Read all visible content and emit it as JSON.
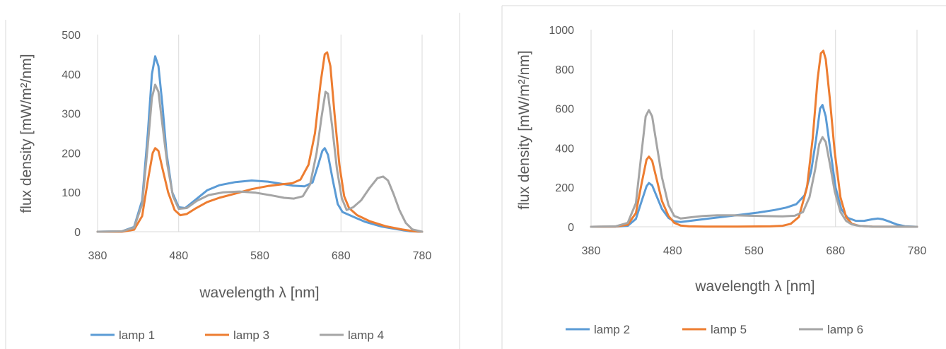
{
  "chart_data": [
    {
      "type": "line",
      "title": "",
      "xlabel": "wavelength λ [nm]",
      "ylabel": "flux density [mW/m²/nm]",
      "xlim": [
        380,
        780
      ],
      "ylim": [
        0,
        500
      ],
      "x_ticks": [
        380,
        480,
        580,
        680,
        780
      ],
      "y_ticks": [
        0,
        100,
        200,
        300,
        400,
        500
      ],
      "grid": "vertical",
      "legend_position": "bottom",
      "series": [
        {
          "name": "lamp 1",
          "color": "#5b9bd5",
          "points": [
            [
              380,
              0
            ],
            [
              410,
              1
            ],
            [
              425,
              12
            ],
            [
              435,
              80
            ],
            [
              442,
              250
            ],
            [
              447,
              400
            ],
            [
              451,
              445
            ],
            [
              455,
              420
            ],
            [
              460,
              320
            ],
            [
              465,
              200
            ],
            [
              472,
              100
            ],
            [
              480,
              62
            ],
            [
              488,
              60
            ],
            [
              500,
              80
            ],
            [
              515,
              105
            ],
            [
              530,
              118
            ],
            [
              550,
              126
            ],
            [
              570,
              130
            ],
            [
              590,
              127
            ],
            [
              605,
              122
            ],
            [
              620,
              117
            ],
            [
              635,
              115
            ],
            [
              645,
              125
            ],
            [
              652,
              170
            ],
            [
              657,
              205
            ],
            [
              660,
              212
            ],
            [
              664,
              195
            ],
            [
              670,
              130
            ],
            [
              676,
              70
            ],
            [
              682,
              50
            ],
            [
              695,
              38
            ],
            [
              710,
              25
            ],
            [
              730,
              13
            ],
            [
              750,
              6
            ],
            [
              765,
              1
            ],
            [
              780,
              0
            ]
          ]
        },
        {
          "name": "lamp 3",
          "color": "#ed7d31",
          "points": [
            [
              380,
              0
            ],
            [
              410,
              0
            ],
            [
              425,
              5
            ],
            [
              435,
              40
            ],
            [
              442,
              130
            ],
            [
              448,
              200
            ],
            [
              451,
              212
            ],
            [
              455,
              205
            ],
            [
              460,
              160
            ],
            [
              467,
              100
            ],
            [
              475,
              55
            ],
            [
              482,
              42
            ],
            [
              490,
              45
            ],
            [
              500,
              58
            ],
            [
              515,
              75
            ],
            [
              530,
              86
            ],
            [
              550,
              97
            ],
            [
              570,
              108
            ],
            [
              590,
              116
            ],
            [
              610,
              121
            ],
            [
              620,
              123
            ],
            [
              630,
              132
            ],
            [
              640,
              170
            ],
            [
              648,
              250
            ],
            [
              655,
              380
            ],
            [
              660,
              450
            ],
            [
              663,
              455
            ],
            [
              667,
              420
            ],
            [
              672,
              300
            ],
            [
              678,
              170
            ],
            [
              684,
              90
            ],
            [
              690,
              60
            ],
            [
              700,
              42
            ],
            [
              715,
              27
            ],
            [
              735,
              14
            ],
            [
              755,
              6
            ],
            [
              770,
              1
            ],
            [
              780,
              0
            ]
          ]
        },
        {
          "name": "lamp 4",
          "color": "#a5a5a5",
          "points": [
            [
              380,
              0
            ],
            [
              410,
              1
            ],
            [
              425,
              10
            ],
            [
              435,
              70
            ],
            [
              442,
              220
            ],
            [
              447,
              340
            ],
            [
              451,
              373
            ],
            [
              455,
              355
            ],
            [
              460,
              270
            ],
            [
              466,
              170
            ],
            [
              473,
              90
            ],
            [
              480,
              58
            ],
            [
              490,
              60
            ],
            [
              502,
              78
            ],
            [
              517,
              93
            ],
            [
              535,
              100
            ],
            [
              555,
              102
            ],
            [
              575,
              99
            ],
            [
              595,
              92
            ],
            [
              610,
              86
            ],
            [
              622,
              84
            ],
            [
              633,
              90
            ],
            [
              642,
              120
            ],
            [
              650,
              200
            ],
            [
              656,
              290
            ],
            [
              661,
              355
            ],
            [
              664,
              350
            ],
            [
              669,
              270
            ],
            [
              675,
              160
            ],
            [
              681,
              85
            ],
            [
              687,
              55
            ],
            [
              695,
              62
            ],
            [
              705,
              80
            ],
            [
              715,
              110
            ],
            [
              725,
              136
            ],
            [
              732,
              140
            ],
            [
              738,
              130
            ],
            [
              745,
              95
            ],
            [
              752,
              55
            ],
            [
              760,
              22
            ],
            [
              768,
              6
            ],
            [
              780,
              0
            ]
          ]
        }
      ]
    },
    {
      "type": "line",
      "title": "",
      "xlabel": "wavelength λ [nm]",
      "ylabel": "flux density [mW/m²/nm]",
      "xlim": [
        380,
        780
      ],
      "ylim": [
        0,
        1000
      ],
      "x_ticks": [
        380,
        480,
        580,
        680,
        780
      ],
      "y_ticks": [
        0,
        200,
        400,
        600,
        800,
        1000
      ],
      "grid": "vertical",
      "legend_position": "bottom",
      "series": [
        {
          "name": "lamp 2",
          "color": "#5b9bd5",
          "points": [
            [
              380,
              0
            ],
            [
              410,
              1
            ],
            [
              425,
              5
            ],
            [
              435,
              40
            ],
            [
              442,
              130
            ],
            [
              448,
              205
            ],
            [
              451,
              222
            ],
            [
              455,
              210
            ],
            [
              460,
              160
            ],
            [
              467,
              90
            ],
            [
              475,
              45
            ],
            [
              482,
              28
            ],
            [
              490,
              24
            ],
            [
              505,
              32
            ],
            [
              525,
              42
            ],
            [
              545,
              52
            ],
            [
              565,
              62
            ],
            [
              585,
              72
            ],
            [
              605,
              85
            ],
            [
              620,
              98
            ],
            [
              632,
              115
            ],
            [
              642,
              160
            ],
            [
              650,
              280
            ],
            [
              656,
              440
            ],
            [
              661,
              600
            ],
            [
              664,
              618
            ],
            [
              668,
              560
            ],
            [
              674,
              380
            ],
            [
              680,
              200
            ],
            [
              687,
              90
            ],
            [
              695,
              45
            ],
            [
              705,
              30
            ],
            [
              715,
              30
            ],
            [
              725,
              38
            ],
            [
              732,
              42
            ],
            [
              738,
              38
            ],
            [
              745,
              28
            ],
            [
              755,
              12
            ],
            [
              765,
              3
            ],
            [
              780,
              0
            ]
          ]
        },
        {
          "name": "lamp 5",
          "color": "#ed7d31",
          "points": [
            [
              380,
              0
            ],
            [
              410,
              1
            ],
            [
              425,
              10
            ],
            [
              435,
              70
            ],
            [
              442,
              220
            ],
            [
              448,
              340
            ],
            [
              451,
              356
            ],
            [
              455,
              335
            ],
            [
              460,
              250
            ],
            [
              467,
              130
            ],
            [
              475,
              55
            ],
            [
              482,
              20
            ],
            [
              490,
              6
            ],
            [
              500,
              2
            ],
            [
              520,
              1
            ],
            [
              560,
              1
            ],
            [
              600,
              2
            ],
            [
              615,
              5
            ],
            [
              625,
              15
            ],
            [
              635,
              50
            ],
            [
              645,
              200
            ],
            [
              652,
              450
            ],
            [
              658,
              750
            ],
            [
              662,
              880
            ],
            [
              665,
              893
            ],
            [
              668,
              850
            ],
            [
              673,
              650
            ],
            [
              679,
              380
            ],
            [
              686,
              150
            ],
            [
              693,
              50
            ],
            [
              700,
              15
            ],
            [
              710,
              4
            ],
            [
              725,
              1
            ],
            [
              780,
              0
            ]
          ]
        },
        {
          "name": "lamp 6",
          "color": "#a5a5a5",
          "points": [
            [
              380,
              0
            ],
            [
              410,
              2
            ],
            [
              425,
              20
            ],
            [
              435,
              120
            ],
            [
              442,
              380
            ],
            [
              447,
              560
            ],
            [
              451,
              592
            ],
            [
              455,
              560
            ],
            [
              460,
              430
            ],
            [
              467,
              250
            ],
            [
              475,
              110
            ],
            [
              482,
              55
            ],
            [
              490,
              42
            ],
            [
              502,
              48
            ],
            [
              517,
              55
            ],
            [
              535,
              58
            ],
            [
              555,
              58
            ],
            [
              575,
              56
            ],
            [
              595,
              54
            ],
            [
              615,
              53
            ],
            [
              630,
              56
            ],
            [
              640,
              75
            ],
            [
              648,
              150
            ],
            [
              655,
              290
            ],
            [
              660,
              420
            ],
            [
              664,
              455
            ],
            [
              668,
              430
            ],
            [
              673,
              320
            ],
            [
              679,
              180
            ],
            [
              686,
              75
            ],
            [
              693,
              30
            ],
            [
              700,
              12
            ],
            [
              710,
              4
            ],
            [
              725,
              1
            ],
            [
              780,
              0
            ]
          ]
        }
      ]
    }
  ]
}
